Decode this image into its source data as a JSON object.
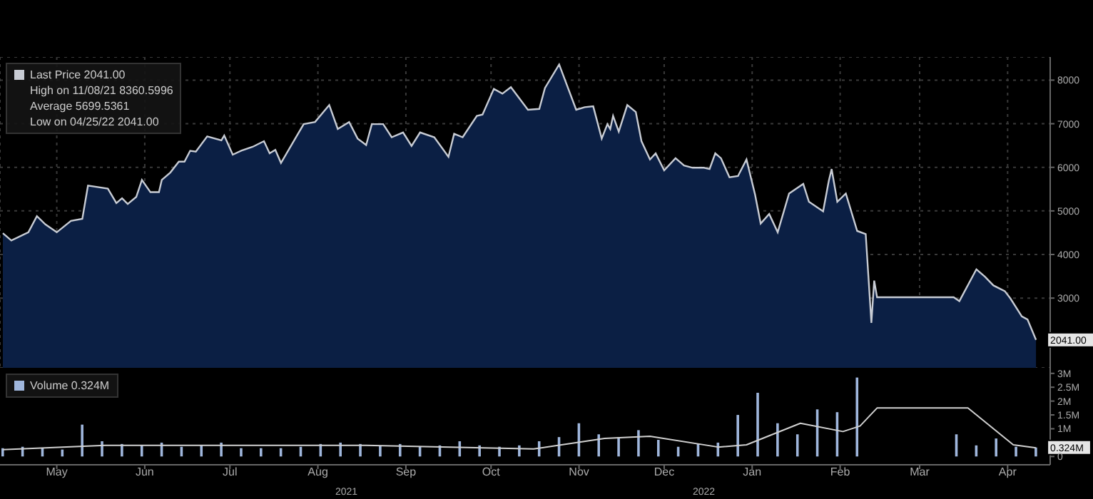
{
  "chart_data": [
    {
      "type": "area",
      "xlim": [
        "2021-04-25",
        "2022-04-30"
      ],
      "ylim": [
        1400,
        8530
      ],
      "yticks": [
        3000,
        4000,
        5000,
        6000,
        7000,
        8000
      ],
      "xticks": [
        {
          "value": "2021-05-15",
          "label": null
        },
        {
          "value": "2021-06-15",
          "label": null
        },
        {
          "value": "2021-07-15",
          "label": null
        },
        {
          "value": "2021-08-15",
          "label": null
        },
        {
          "value": "2021-09-15",
          "label": null
        },
        {
          "value": "2021-10-15",
          "label": null
        },
        {
          "value": "2021-11-15",
          "label": null
        },
        {
          "value": "2021-12-15",
          "label": null
        },
        {
          "value": "2022-01-15",
          "label": null
        },
        {
          "value": "2022-02-15",
          "label": null
        },
        {
          "value": "2022-03-15",
          "label": null
        },
        {
          "value": "2022-04-15",
          "label": null
        }
      ],
      "tick_labels": "y",
      "grid": true,
      "legend": "top left",
      "annotations": [
        "High on 11/08/21 8360.5996",
        "Average 5699.5361",
        "Low on 04/25/22 2041.00",
        {
          "text": "2041.00",
          "x": "2022-04-25",
          "y": 2041
        }
      ],
      "series": [
        {
          "name": "Last Price 2041.00",
          "color": "#c8ccd4",
          "x": [
            "2021-04-26",
            "2021-04-29",
            "2021-05-05",
            "2021-05-08",
            "2021-05-11",
            "2021-05-15",
            "2021-05-20",
            "2021-05-24",
            "2021-05-26",
            "2021-06-02",
            "2021-06-05",
            "2021-06-07",
            "2021-06-09",
            "2021-06-12",
            "2021-06-14",
            "2021-06-17",
            "2021-06-20",
            "2021-06-21",
            "2021-06-24",
            "2021-06-27",
            "2021-06-29",
            "2021-07-01",
            "2021-07-03",
            "2021-07-07",
            "2021-07-12",
            "2021-07-13",
            "2021-07-16",
            "2021-07-19",
            "2021-07-23",
            "2021-07-27",
            "2021-07-29",
            "2021-07-31",
            "2021-08-02",
            "2021-08-08",
            "2021-08-10",
            "2021-08-14",
            "2021-08-19",
            "2021-08-22",
            "2021-08-26",
            "2021-08-29",
            "2021-09-01",
            "2021-09-03",
            "2021-09-07",
            "2021-09-10",
            "2021-09-14",
            "2021-09-17",
            "2021-09-20",
            "2021-09-25",
            "2021-09-30",
            "2021-10-02",
            "2021-10-05",
            "2021-10-10",
            "2021-10-12",
            "2021-10-16",
            "2021-10-19",
            "2021-10-22",
            "2021-10-28",
            "2021-11-01",
            "2021-11-03",
            "2021-11-08",
            "2021-11-14",
            "2021-11-17",
            "2021-11-20",
            "2021-11-23",
            "2021-11-25",
            "2021-11-26",
            "2021-11-27",
            "2021-11-29",
            "2021-12-02",
            "2021-12-05",
            "2021-12-07",
            "2021-12-10",
            "2021-12-12",
            "2021-12-15",
            "2021-12-19",
            "2021-12-22",
            "2021-12-25",
            "2021-12-29",
            "2021-12-31",
            "2022-01-02",
            "2022-01-04",
            "2022-01-07",
            "2022-01-10",
            "2022-01-13",
            "2022-01-16",
            "2022-01-18",
            "2022-01-21",
            "2022-01-24",
            "2022-01-28",
            "2022-02-02",
            "2022-02-04",
            "2022-02-09",
            "2022-02-11",
            "2022-02-12",
            "2022-02-14",
            "2022-02-17",
            "2022-02-21",
            "2022-02-24",
            "2022-02-26",
            "2022-02-27",
            "2022-02-28",
            "2022-03-27",
            "2022-03-29",
            "2022-04-04",
            "2022-04-07",
            "2022-04-10",
            "2022-04-14",
            "2022-04-16",
            "2022-04-20",
            "2022-04-22",
            "2022-04-25"
          ],
          "values": [
            4490,
            4320,
            4510,
            4880,
            4690,
            4510,
            4770,
            4820,
            5580,
            5510,
            5180,
            5290,
            5160,
            5320,
            5710,
            5430,
            5430,
            5710,
            5880,
            6130,
            6130,
            6380,
            6360,
            6710,
            6620,
            6730,
            6290,
            6380,
            6470,
            6600,
            6320,
            6400,
            6100,
            6770,
            6990,
            7040,
            7430,
            6880,
            7040,
            6660,
            6510,
            6990,
            6990,
            6690,
            6800,
            6490,
            6800,
            6690,
            6240,
            6770,
            6690,
            7180,
            7210,
            7800,
            7690,
            7840,
            7320,
            7340,
            7820,
            8360,
            7320,
            7380,
            7400,
            6660,
            6990,
            6880,
            7180,
            6820,
            7430,
            7270,
            6600,
            6180,
            6320,
            5930,
            6210,
            6040,
            5990,
            5990,
            5960,
            6320,
            6210,
            5770,
            5800,
            6180,
            5380,
            4710,
            4930,
            4510,
            5400,
            5620,
            5210,
            4990,
            5690,
            5960,
            5210,
            5400,
            4540,
            4470,
            2430,
            3400,
            3020,
            3020,
            2930,
            3660,
            3490,
            3290,
            3160,
            2990,
            2580,
            2510,
            2041
          ]
        }
      ]
    },
    {
      "type": "bar",
      "xlim": [
        "2021-04-25",
        "2022-04-30"
      ],
      "ylim": [
        -0.3,
        3.2
      ],
      "yticks": [
        {
          "value": 0,
          "label": "0"
        },
        {
          "value": 0.5,
          "label": null
        },
        {
          "value": 1,
          "label": "1M"
        },
        {
          "value": 1.5,
          "label": "1.5M"
        },
        {
          "value": 2,
          "label": "2M"
        },
        {
          "value": 2.5,
          "label": "2.5M"
        },
        {
          "value": 3,
          "label": "3M"
        }
      ],
      "xticks": [
        {
          "value": "2021-05-15",
          "label": "May"
        },
        {
          "value": "2021-06-15",
          "label": "Jun"
        },
        {
          "value": "2021-07-15",
          "label": "Jul"
        },
        {
          "value": "2021-08-15",
          "label": "Aug"
        },
        {
          "value": "2021-09-15",
          "label": "Sep"
        },
        {
          "value": "2021-10-15",
          "label": "Oct"
        },
        {
          "value": "2021-11-15",
          "label": "Nov"
        },
        {
          "value": "2021-12-15",
          "label": "Dec"
        },
        {
          "value": "2022-01-15",
          "label": "Jan"
        },
        {
          "value": "2022-02-15",
          "label": "Feb"
        },
        {
          "value": "2022-03-15",
          "label": "Mar"
        },
        {
          "value": "2022-04-15",
          "label": "Apr"
        }
      ],
      "legend": "top left",
      "annotations": [
        "2021",
        "2022",
        {
          "text": "0.324M",
          "x": "2022-04-25",
          "y": 0.324
        }
      ],
      "series": [
        {
          "name": "Volume 0.324M",
          "color": "#9fb6dc",
          "x": [
            "2021-04-26",
            "2021-05-03",
            "2021-05-10",
            "2021-05-17",
            "2021-05-24",
            "2021-05-31",
            "2021-06-07",
            "2021-06-14",
            "2021-06-21",
            "2021-06-28",
            "2021-07-05",
            "2021-07-12",
            "2021-07-19",
            "2021-07-26",
            "2021-08-02",
            "2021-08-09",
            "2021-08-16",
            "2021-08-23",
            "2021-08-30",
            "2021-09-06",
            "2021-09-13",
            "2021-09-20",
            "2021-09-27",
            "2021-10-04",
            "2021-10-11",
            "2021-10-18",
            "2021-10-25",
            "2021-11-01",
            "2021-11-08",
            "2021-11-15",
            "2021-11-22",
            "2021-11-29",
            "2021-12-06",
            "2021-12-13",
            "2021-12-20",
            "2021-12-27",
            "2022-01-03",
            "2022-01-10",
            "2022-01-17",
            "2022-01-24",
            "2022-01-31",
            "2022-02-07",
            "2022-02-14",
            "2022-02-21",
            "2022-02-28",
            "2022-03-07",
            "2022-03-14",
            "2022-03-21",
            "2022-03-28",
            "2022-04-04",
            "2022-04-11",
            "2022-04-18",
            "2022-04-25"
          ],
          "values": [
            0.3,
            0.35,
            0.3,
            0.25,
            1.15,
            0.55,
            0.45,
            0.4,
            0.5,
            0.35,
            0.4,
            0.5,
            0.3,
            0.3,
            0.3,
            0.35,
            0.45,
            0.5,
            0.45,
            0.4,
            0.45,
            0.35,
            0.4,
            0.55,
            0.4,
            0.35,
            0.4,
            0.55,
            0.7,
            1.2,
            0.8,
            0.7,
            0.95,
            0.6,
            0.35,
            0.45,
            0.5,
            1.5,
            2.3,
            1.2,
            0.8,
            1.7,
            1.6,
            2.85,
            null,
            null,
            null,
            null,
            0.8,
            0.4,
            0.65,
            0.35,
            0.324
          ]
        },
        {
          "type": "line",
          "color": "#d0d0d0",
          "x": [
            "2021-04-26",
            "2021-06-01",
            "2021-09-01",
            "2021-10-30",
            "2021-11-24",
            "2021-12-10",
            "2022-01-03",
            "2022-01-13",
            "2022-02-01",
            "2022-02-16",
            "2022-02-22",
            "2022-02-28",
            "2022-04-01",
            "2022-04-17",
            "2022-04-25"
          ],
          "values": [
            0.25,
            0.4,
            0.4,
            0.27,
            0.65,
            0.73,
            0.34,
            0.42,
            1.2,
            0.9,
            1.1,
            1.75,
            1.75,
            0.42,
            0.31
          ]
        }
      ]
    }
  ]
}
